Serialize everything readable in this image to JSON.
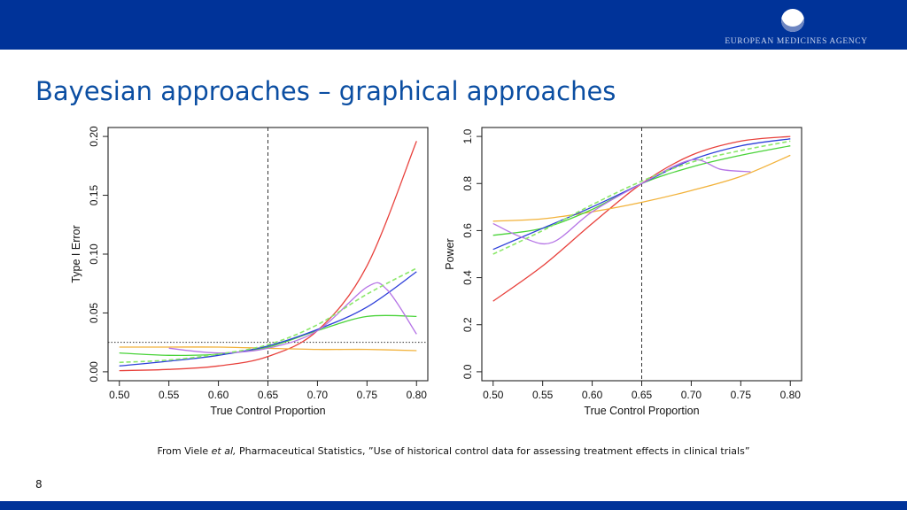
{
  "header": {
    "logo_text": "EUROPEAN MEDICINES AGENCY",
    "bar_color": "#003399",
    "logo_icon": "ema-globe-icon"
  },
  "slide": {
    "title": "Bayesian approaches – graphical approaches",
    "caption_prefix": "From Viele ",
    "caption_italic": "et al,",
    "caption_rest": " Pharmaceutical Statistics, ”Use of historical control data for assessing treatment effects in clinical trials”",
    "page_number": "8"
  },
  "chart_data": [
    {
      "type": "line",
      "xlabel": "True Control Proportion",
      "ylabel": "Type I Error",
      "xlim": [
        0.5,
        0.8
      ],
      "ylim": [
        0.0,
        0.2
      ],
      "xticks": [
        "0.50",
        "0.55",
        "0.60",
        "0.65",
        "0.70",
        "0.75",
        "0.80"
      ],
      "yticks": [
        "0.00",
        "0.05",
        "0.10",
        "0.15",
        "0.20"
      ],
      "reference_lines": {
        "vertical_x": 0.65,
        "horizontal_y": 0.025
      },
      "series": [
        {
          "color": "#e8413c",
          "dashed": false,
          "x": [
            0.5,
            0.55,
            0.6,
            0.65,
            0.7,
            0.75,
            0.8
          ],
          "y": [
            0.001,
            0.002,
            0.005,
            0.013,
            0.035,
            0.09,
            0.196
          ]
        },
        {
          "color": "#f2b23a",
          "dashed": false,
          "x": [
            0.5,
            0.55,
            0.6,
            0.65,
            0.7,
            0.75,
            0.8
          ],
          "y": [
            0.021,
            0.021,
            0.021,
            0.02,
            0.019,
            0.019,
            0.018
          ]
        },
        {
          "color": "#4ad33a",
          "dashed": false,
          "x": [
            0.5,
            0.55,
            0.6,
            0.65,
            0.7,
            0.75,
            0.8
          ],
          "y": [
            0.016,
            0.014,
            0.015,
            0.021,
            0.035,
            0.047,
            0.047
          ]
        },
        {
          "color": "#2d3fd9",
          "dashed": false,
          "x": [
            0.5,
            0.55,
            0.6,
            0.65,
            0.7,
            0.75,
            0.8
          ],
          "y": [
            0.005,
            0.009,
            0.014,
            0.022,
            0.036,
            0.055,
            0.085
          ]
        },
        {
          "color": "#b574e6",
          "dashed": false,
          "x": [
            0.55,
            0.6,
            0.65,
            0.7,
            0.75,
            0.77,
            0.8
          ],
          "y": [
            0.02,
            0.016,
            0.02,
            0.035,
            0.072,
            0.07,
            0.032
          ]
        },
        {
          "color": "#8ce86a",
          "dashed": true,
          "x": [
            0.5,
            0.55,
            0.6,
            0.65,
            0.7,
            0.75,
            0.8
          ],
          "y": [
            0.008,
            0.01,
            0.015,
            0.023,
            0.04,
            0.066,
            0.088
          ]
        }
      ]
    },
    {
      "type": "line",
      "xlabel": "True Control Proportion",
      "ylabel": "Power",
      "xlim": [
        0.5,
        0.8
      ],
      "ylim": [
        0.0,
        1.0
      ],
      "xticks": [
        "0.50",
        "0.55",
        "0.60",
        "0.65",
        "0.70",
        "0.75",
        "0.80"
      ],
      "yticks": [
        "0.0",
        "0.2",
        "0.4",
        "0.6",
        "0.8",
        "1.0"
      ],
      "reference_lines": {
        "vertical_x": 0.65
      },
      "series": [
        {
          "color": "#e8413c",
          "dashed": false,
          "x": [
            0.5,
            0.55,
            0.6,
            0.65,
            0.7,
            0.75,
            0.8
          ],
          "y": [
            0.3,
            0.45,
            0.63,
            0.8,
            0.92,
            0.98,
            1.0
          ]
        },
        {
          "color": "#f2b23a",
          "dashed": false,
          "x": [
            0.5,
            0.55,
            0.6,
            0.65,
            0.7,
            0.75,
            0.8
          ],
          "y": [
            0.64,
            0.65,
            0.68,
            0.72,
            0.77,
            0.83,
            0.92
          ]
        },
        {
          "color": "#4ad33a",
          "dashed": false,
          "x": [
            0.5,
            0.55,
            0.6,
            0.65,
            0.7,
            0.75,
            0.8
          ],
          "y": [
            0.58,
            0.61,
            0.69,
            0.8,
            0.87,
            0.92,
            0.96
          ]
        },
        {
          "color": "#2d3fd9",
          "dashed": false,
          "x": [
            0.5,
            0.55,
            0.6,
            0.65,
            0.7,
            0.75,
            0.8
          ],
          "y": [
            0.52,
            0.61,
            0.7,
            0.8,
            0.9,
            0.96,
            0.99
          ]
        },
        {
          "color": "#b574e6",
          "dashed": false,
          "x": [
            0.5,
            0.53,
            0.56,
            0.6,
            0.65,
            0.7,
            0.73,
            0.76
          ],
          "y": [
            0.63,
            0.57,
            0.55,
            0.68,
            0.8,
            0.9,
            0.86,
            0.85
          ]
        },
        {
          "color": "#8ce86a",
          "dashed": true,
          "x": [
            0.5,
            0.55,
            0.6,
            0.65,
            0.7,
            0.75,
            0.8
          ],
          "y": [
            0.5,
            0.6,
            0.71,
            0.81,
            0.89,
            0.94,
            0.98
          ]
        }
      ]
    }
  ]
}
